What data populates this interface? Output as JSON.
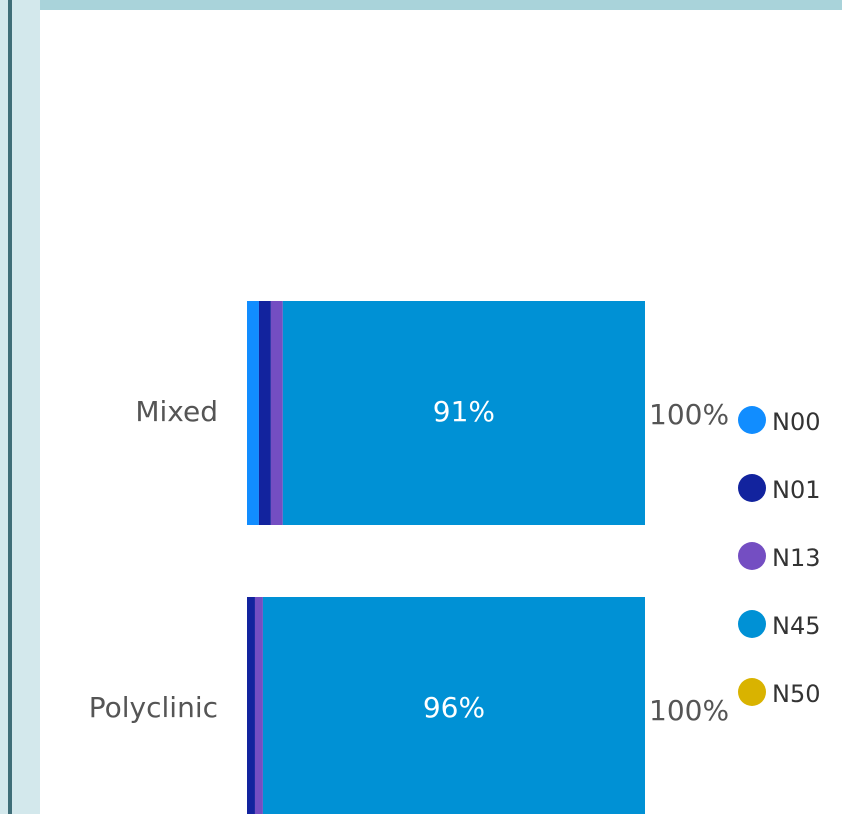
{
  "chart_data": {
    "type": "bar",
    "orientation": "horizontal",
    "stacked": "percent",
    "categories": [
      "Mixed",
      "Polyclinic"
    ],
    "series": [
      {
        "name": "N00",
        "color": "#118dff",
        "values": [
          3,
          0
        ]
      },
      {
        "name": "N01",
        "color": "#12239e",
        "values": [
          3,
          2
        ]
      },
      {
        "name": "N13",
        "color": "#744ec2",
        "values": [
          3,
          2
        ]
      },
      {
        "name": "N45",
        "color": "#0091d5",
        "values": [
          91,
          96
        ],
        "value_labels": [
          "91%",
          "96%"
        ]
      },
      {
        "name": "N50",
        "color": "#d9b300",
        "values": [
          0,
          0
        ]
      }
    ],
    "totals": [
      100,
      100
    ],
    "total_labels": [
      "100%",
      "100%"
    ],
    "xlim": [
      0,
      100
    ],
    "legend": "right"
  }
}
